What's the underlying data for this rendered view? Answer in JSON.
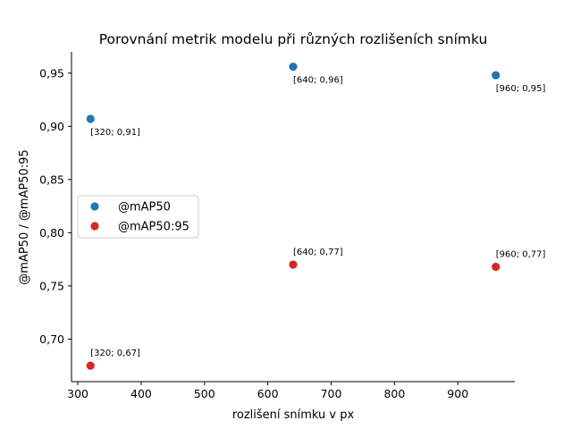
{
  "chart_data": {
    "type": "scatter",
    "title": "Porovnání metrik modelu při různých rozlišeních snímku",
    "xlabel": "rozlišení snímku v px",
    "ylabel": "@mAP50 / @mAP50:95",
    "xlim": [
      290,
      990
    ],
    "ylim": [
      0.66,
      0.97
    ],
    "x_ticks": [
      {
        "value": 300,
        "label": "300"
      },
      {
        "value": 400,
        "label": "400"
      },
      {
        "value": 500,
        "label": "500"
      },
      {
        "value": 600,
        "label": "600"
      },
      {
        "value": 700,
        "label": "700"
      },
      {
        "value": 800,
        "label": "800"
      },
      {
        "value": 900,
        "label": "900"
      }
    ],
    "y_ticks": [
      {
        "value": 0.7,
        "label": "0,70"
      },
      {
        "value": 0.75,
        "label": "0,75"
      },
      {
        "value": 0.8,
        "label": "0,80"
      },
      {
        "value": 0.85,
        "label": "0,85"
      },
      {
        "value": 0.9,
        "label": "0,90"
      },
      {
        "value": 0.95,
        "label": "0,95"
      }
    ],
    "legend_position": "center-left",
    "grid": false,
    "series": [
      {
        "name": "@mAP50",
        "color": "#1f77b4",
        "label_position": "below",
        "points": [
          {
            "x": 320,
            "y": 0.907,
            "label": "[320; 0,91]"
          },
          {
            "x": 640,
            "y": 0.956,
            "label": "[640; 0,96]"
          },
          {
            "x": 960,
            "y": 0.948,
            "label": "[960; 0,95]"
          }
        ]
      },
      {
        "name": "@mAP50:95",
        "color": "#d62728",
        "label_position": "above",
        "points": [
          {
            "x": 320,
            "y": 0.675,
            "label": "[320; 0,67]"
          },
          {
            "x": 640,
            "y": 0.77,
            "label": "[640; 0,77]"
          },
          {
            "x": 960,
            "y": 0.768,
            "label": "[960; 0,77]"
          }
        ]
      }
    ]
  }
}
